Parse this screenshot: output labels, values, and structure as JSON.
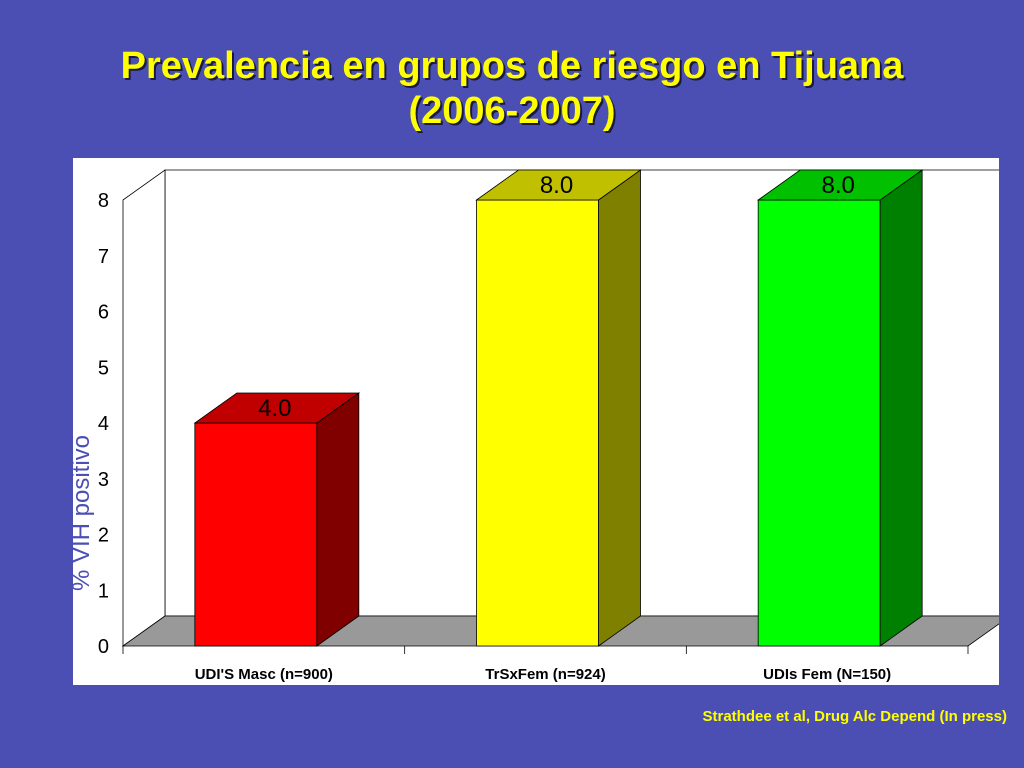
{
  "slide": {
    "title_line1": "Prevalencia en grupos de riesgo en Tijuana",
    "title_line2": "(2006-2007)",
    "citation": "Strathdee et al, Drug Alc Depend (In press)"
  },
  "colors": {
    "background": "#4b4fb3",
    "title": "#ffff00",
    "panel": "#ffffff"
  },
  "chart_data": {
    "type": "bar",
    "style": "3d",
    "title": "",
    "xlabel": "",
    "ylabel": "% VIH positivo",
    "ylim": [
      0,
      8
    ],
    "yticks": [
      0,
      1,
      2,
      3,
      4,
      5,
      6,
      7,
      8
    ],
    "grid": false,
    "legend": "none",
    "categories": [
      "UDI'S Masc (n=900)",
      "TrSxFem (n=924)",
      "UDIs Fem (N=150)"
    ],
    "values": [
      4.0,
      8.0,
      8.0
    ],
    "data_labels": [
      "4.0",
      "8.0",
      "8.0"
    ],
    "bar_colors": [
      {
        "front": "#ff0000",
        "side": "#800000",
        "top": "#c00000"
      },
      {
        "front": "#ffff00",
        "side": "#808000",
        "top": "#c0c000"
      },
      {
        "front": "#00ff00",
        "side": "#008000",
        "top": "#00c000"
      }
    ]
  }
}
